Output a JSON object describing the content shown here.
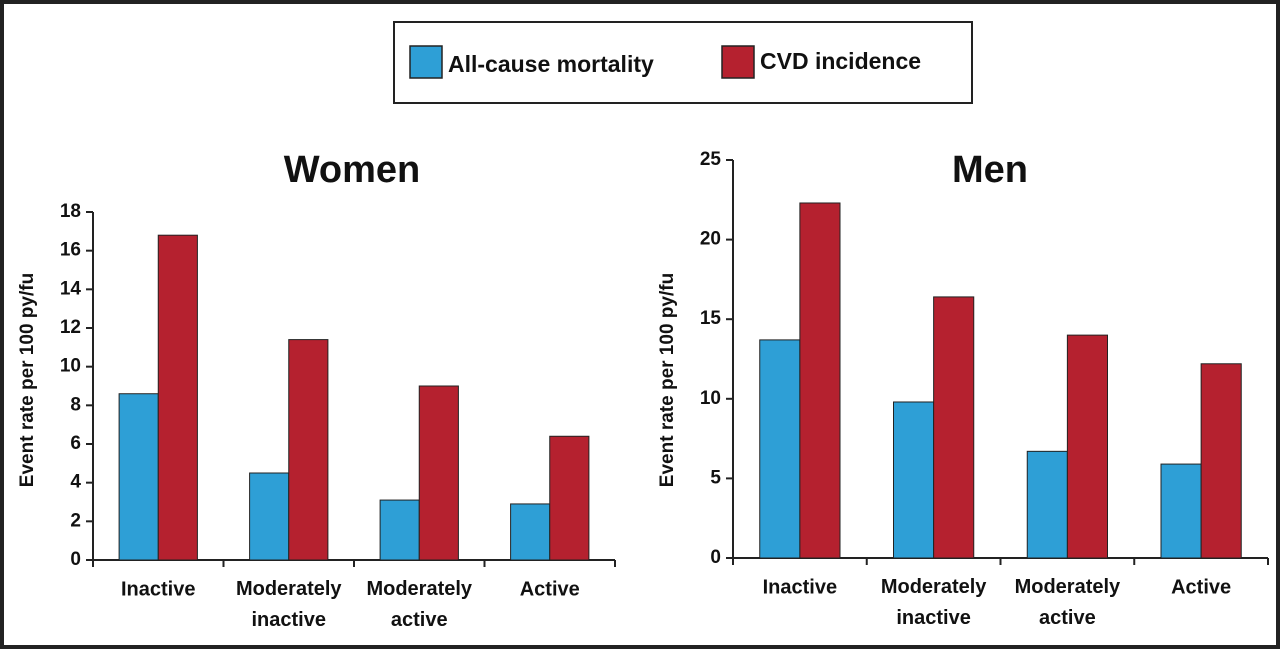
{
  "chart_data": [
    {
      "type": "bar",
      "title": "Women",
      "y_label": "Event rate per 100 py/fu",
      "categories": [
        "Inactive",
        "Moderately inactive",
        "Moderately active",
        "Active"
      ],
      "series": [
        {
          "name": "All-cause mortality",
          "color": "#2e9fd6",
          "values": [
            8.6,
            4.5,
            3.1,
            2.9
          ]
        },
        {
          "name": "CVD incidence",
          "color": "#b5212f",
          "values": [
            16.8,
            11.4,
            9.0,
            6.4
          ]
        }
      ],
      "ylim": [
        0,
        18
      ],
      "yticks": [
        0,
        2,
        4,
        6,
        8,
        10,
        12,
        14,
        16,
        18
      ]
    },
    {
      "type": "bar",
      "title": "Men",
      "y_label": "Event rate per 100 py/fu",
      "categories": [
        "Inactive",
        "Moderately inactive",
        "Moderately active",
        "Active"
      ],
      "series": [
        {
          "color": "#2e9fd6",
          "values": [
            13.7,
            9.8,
            6.7,
            5.9
          ]
        },
        {
          "color": "#b5212f",
          "values": [
            22.3,
            16.4,
            14.0,
            12.2
          ]
        }
      ],
      "ylim": [
        0,
        25
      ],
      "yticks": [
        0,
        5,
        10,
        15,
        20,
        25
      ]
    }
  ]
}
